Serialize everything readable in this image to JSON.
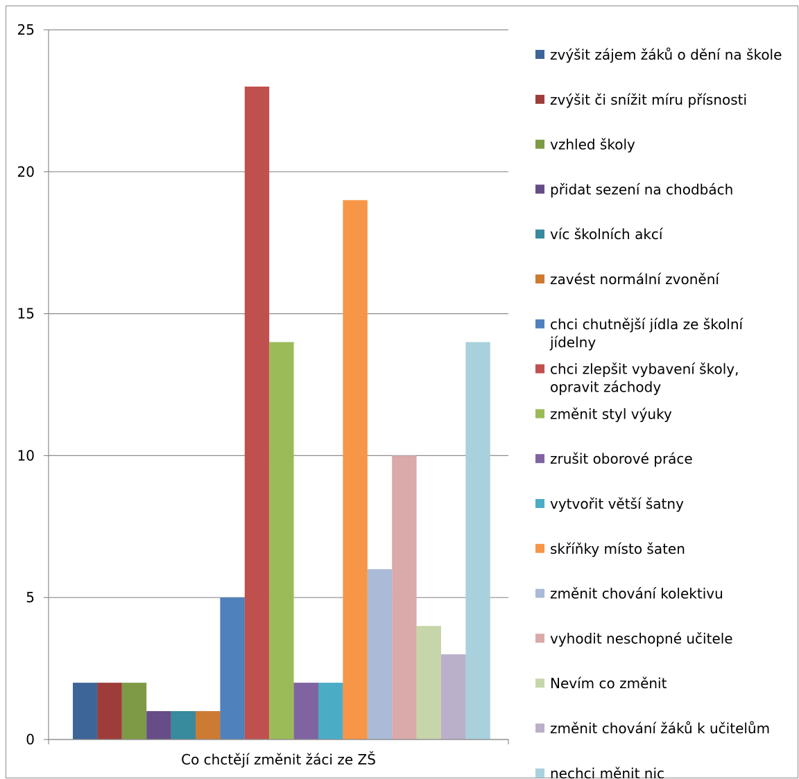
{
  "chart_data": {
    "type": "bar",
    "categories": [
      "Co chctějí změnit žáci ze ZŠ"
    ],
    "ylim": [
      0,
      25
    ],
    "yticks": [
      0,
      5,
      10,
      15,
      20,
      25
    ],
    "grid": true,
    "legend_position": "right",
    "series": [
      {
        "name": " zvýšit zájem žáků o dění na škole",
        "values": [
          2
        ],
        "color": "#3E6598"
      },
      {
        "name": "zvýšit či snížit míru přísnosti",
        "values": [
          2
        ],
        "color": "#9E3C3A"
      },
      {
        "name": "vzhled školy",
        "values": [
          2
        ],
        "color": "#7E9A46"
      },
      {
        "name": "přidat sezení na chodbách",
        "values": [
          1
        ],
        "color": "#664D87"
      },
      {
        "name": "víc školních akcí",
        "values": [
          1
        ],
        "color": "#388A9D"
      },
      {
        "name": "zavést normální zvonění",
        "values": [
          1
        ],
        "color": "#CD7A33"
      },
      {
        "name": "chci chutnější jídla ze školní jídelny",
        "values": [
          5
        ],
        "color": "#4F81BD"
      },
      {
        "name": "chci zlepšit vybavení školy, opravit záchody",
        "values": [
          23
        ],
        "color": "#C0504D"
      },
      {
        "name": "změnit styl výuky",
        "values": [
          14
        ],
        "color": "#9BBB59"
      },
      {
        "name": "zrušit oborové práce",
        "values": [
          2
        ],
        "color": "#8064A2"
      },
      {
        "name": "vytvořit větší šatny",
        "values": [
          2
        ],
        "color": "#4BACC6"
      },
      {
        "name": "skříňky místo šaten",
        "values": [
          19
        ],
        "color": "#F79646"
      },
      {
        "name": "změnit chování kolektivu",
        "values": [
          6
        ],
        "color": "#AABAD7"
      },
      {
        "name": "vyhodit neschopné učitele",
        "values": [
          10
        ],
        "color": "#D9AAA9"
      },
      {
        "name": "Nevím co změnit",
        "values": [
          4
        ],
        "color": "#C6D6AA"
      },
      {
        "name": "změnit chování žáků k učitelům",
        "values": [
          3
        ],
        "color": "#BAB0C9"
      },
      {
        "name": "nechci měnit nic",
        "values": [
          14
        ],
        "color": "#A9D0DD"
      }
    ]
  }
}
